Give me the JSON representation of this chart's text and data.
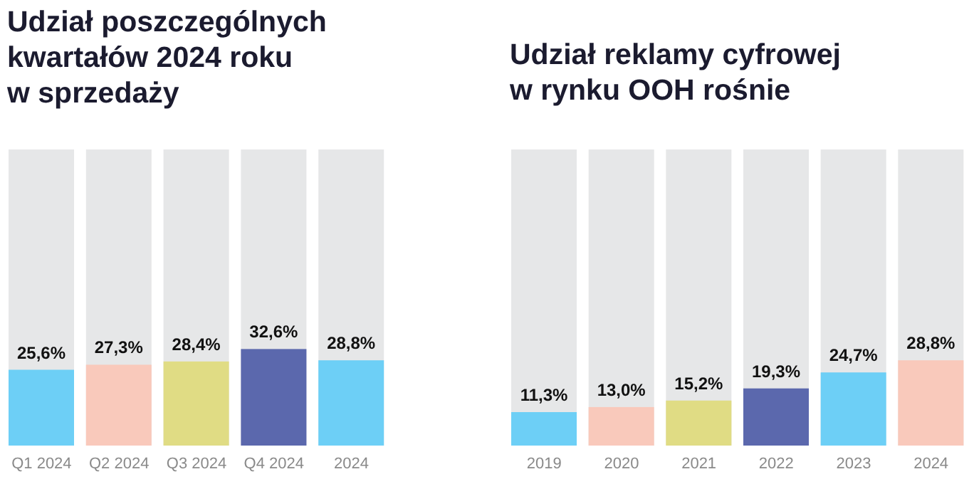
{
  "chart_data": [
    {
      "type": "bar",
      "title": "Udział poszczególnych kwartałów 2024 roku w sprzedaży",
      "categories": [
        "Q1 2024",
        "Q2 2024",
        "Q3 2024",
        "Q4 2024",
        "2024"
      ],
      "values": [
        25.6,
        27.3,
        28.4,
        32.6,
        28.8
      ],
      "colors": [
        "#6dcff6",
        "#f9c9bb",
        "#e0dc84",
        "#5b68ad",
        "#6dcff6"
      ],
      "value_labels": [
        "25,6%",
        "27,3%",
        "28,4%",
        "32,6%",
        "28,8%"
      ],
      "ylim": [
        0,
        100
      ],
      "tick_labels": "x",
      "grid": false,
      "legend": false
    },
    {
      "type": "bar",
      "title": "Udział reklamy cyfrowej w rynku OOH rośnie",
      "categories": [
        "2019",
        "2020",
        "2021",
        "2022",
        "2023",
        "2024"
      ],
      "values": [
        11.3,
        13.0,
        15.2,
        19.3,
        24.7,
        28.8
      ],
      "colors": [
        "#6dcff6",
        "#f9c9bb",
        "#e0dc84",
        "#5b68ad",
        "#6dcff6",
        "#f9c9bb"
      ],
      "value_labels": [
        "11,3%",
        "13,0%",
        "15,2%",
        "19,3%",
        "24,7%",
        "28,8%"
      ],
      "ylim": [
        0,
        100
      ],
      "tick_labels": "x",
      "grid": false,
      "legend": false
    }
  ]
}
